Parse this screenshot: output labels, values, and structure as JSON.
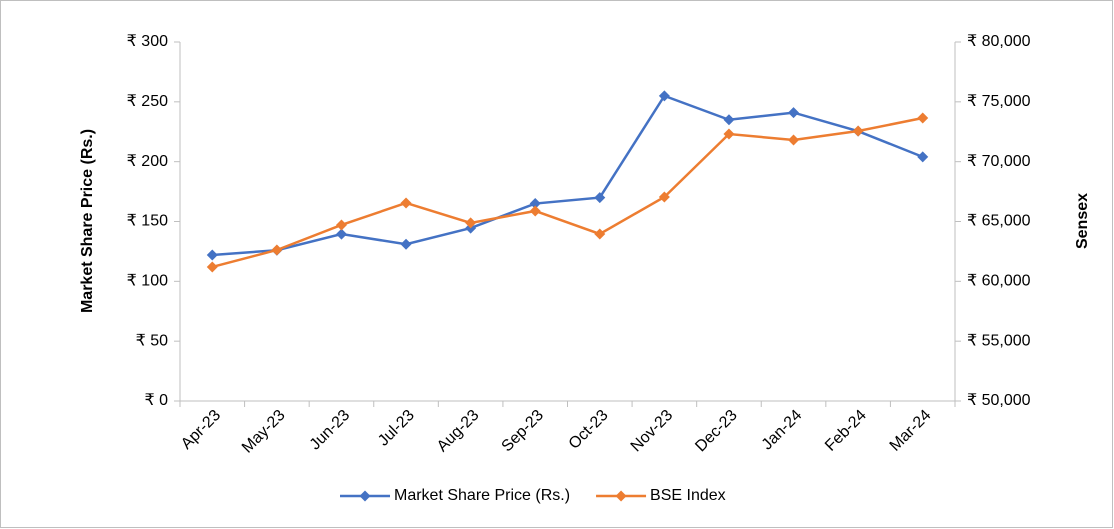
{
  "chart_data": {
    "type": "line",
    "categories": [
      "Apr-23",
      "May-23",
      "Jun-23",
      "Jul-23",
      "Aug-23",
      "Sep-23",
      "Oct-23",
      "Nov-23",
      "Dec-23",
      "Jan-24",
      "Feb-24",
      "Mar-24"
    ],
    "ylabel": "Market Share Price (Rs.)",
    "y2label": "Sensex",
    "ylim": [
      0,
      300
    ],
    "yticks": [
      {
        "value": 0,
        "label": "₹ 0"
      },
      {
        "value": 50,
        "label": "₹ 50"
      },
      {
        "value": 100,
        "label": "₹ 100"
      },
      {
        "value": 150,
        "label": "₹ 150"
      },
      {
        "value": 200,
        "label": "₹ 200"
      },
      {
        "value": 250,
        "label": "₹ 250"
      },
      {
        "value": 300,
        "label": "₹ 300"
      }
    ],
    "y2lim": [
      50000,
      80000
    ],
    "y2ticks": [
      {
        "value": 50000,
        "label": "₹ 50,000"
      },
      {
        "value": 55000,
        "label": "₹ 55,000"
      },
      {
        "value": 60000,
        "label": "₹ 60,000"
      },
      {
        "value": 65000,
        "label": "₹ 65,000"
      },
      {
        "value": 70000,
        "label": "₹ 70,000"
      },
      {
        "value": 75000,
        "label": "₹ 75,000"
      },
      {
        "value": 80000,
        "label": "₹ 80,000"
      }
    ],
    "legend": "bottom",
    "series": [
      {
        "name": "Market Share Price (Rs.)",
        "color": "#4472c4",
        "values": [
          122,
          126,
          139.5,
          131,
          144.5,
          165,
          170,
          255,
          235,
          241,
          225.5,
          204
        ]
      },
      {
        "name": "BSE Index",
        "color": "#ed7d31",
        "axis": "y2",
        "values": [
          61200,
          62620,
          64710,
          66550,
          64880,
          65880,
          63960,
          67050,
          72310,
          71810,
          72560,
          73650
        ]
      }
    ]
  }
}
